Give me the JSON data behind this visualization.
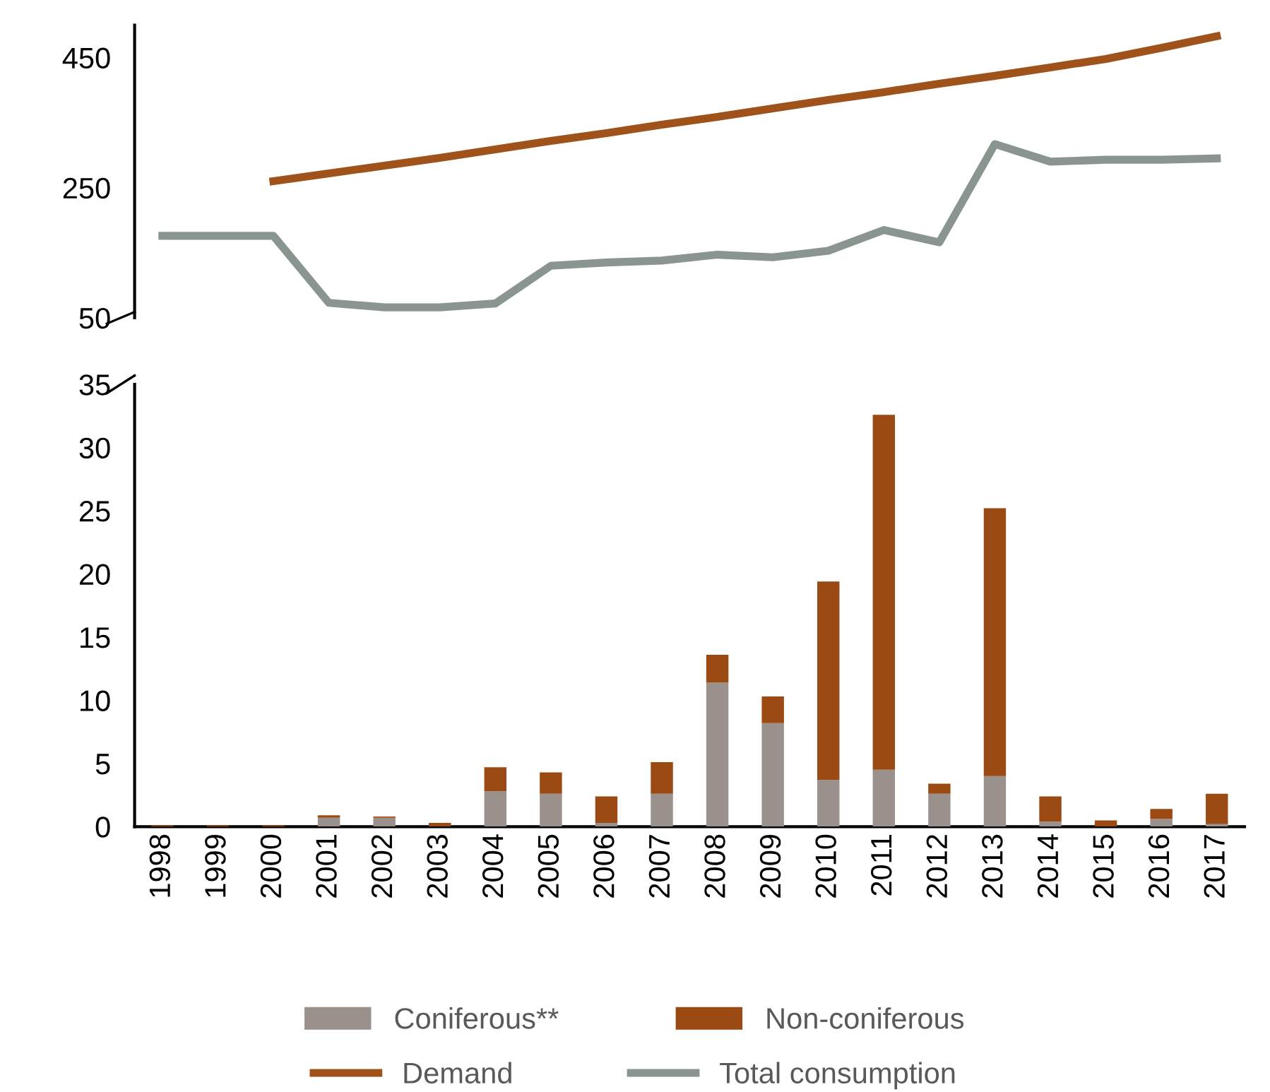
{
  "chart_data": [
    {
      "type": "line",
      "categories": [
        "1998",
        "1999",
        "2000",
        "2001",
        "2002",
        "2003",
        "2004",
        "2005",
        "2006",
        "2007",
        "2008",
        "2009",
        "2010",
        "2011",
        "2012",
        "2013",
        "2014",
        "2015",
        "2016",
        "2017"
      ],
      "series": [
        {
          "name": "Demand",
          "color": "#a0521b",
          "values": [
            null,
            null,
            260,
            272,
            284,
            296,
            309,
            322,
            334,
            347,
            359,
            372,
            385,
            397,
            410,
            422,
            435,
            448,
            465,
            483
          ]
        },
        {
          "name": "Total consumption",
          "color": "#8a9590",
          "values": [
            176,
            176,
            176,
            73,
            66,
            66,
            72,
            130,
            135,
            138,
            147,
            143,
            153,
            185,
            166,
            317,
            290,
            293,
            293,
            295
          ]
        }
      ],
      "ylim": [
        50,
        500
      ],
      "yticks": [
        50,
        250,
        450
      ],
      "tick_labels": "y",
      "grid": false,
      "legend": "bottom",
      "marker": "none",
      "line_style": "solid"
    },
    {
      "type": "bar",
      "stacked": true,
      "categories": [
        "1998",
        "1999",
        "2000",
        "2001",
        "2002",
        "2003",
        "2004",
        "2005",
        "2006",
        "2007",
        "2008",
        "2009",
        "2010",
        "2011",
        "2012",
        "2013",
        "2014",
        "2015",
        "2016",
        "2017"
      ],
      "series": [
        {
          "name": "Coniferous**",
          "color": "#9a918c",
          "values": [
            0,
            0,
            0,
            0.7,
            0.7,
            0,
            2.8,
            2.6,
            0.3,
            2.6,
            11.4,
            8.2,
            3.7,
            4.5,
            2.6,
            4.0,
            0.4,
            0,
            0.6,
            0.2
          ]
        },
        {
          "name": "Non-coniferous",
          "color": "#9a4a12",
          "values": [
            0.1,
            0.1,
            0.1,
            0.2,
            0.1,
            0.3,
            1.9,
            1.7,
            2.1,
            2.5,
            2.2,
            2.1,
            15.7,
            28.1,
            0.8,
            21.2,
            2.0,
            0.5,
            0.8,
            2.4
          ]
        }
      ],
      "ylim": [
        0,
        35
      ],
      "yticks": [
        0,
        5,
        10,
        15,
        20,
        25,
        30,
        35
      ],
      "grid": false,
      "legend": "bottom"
    }
  ]
}
